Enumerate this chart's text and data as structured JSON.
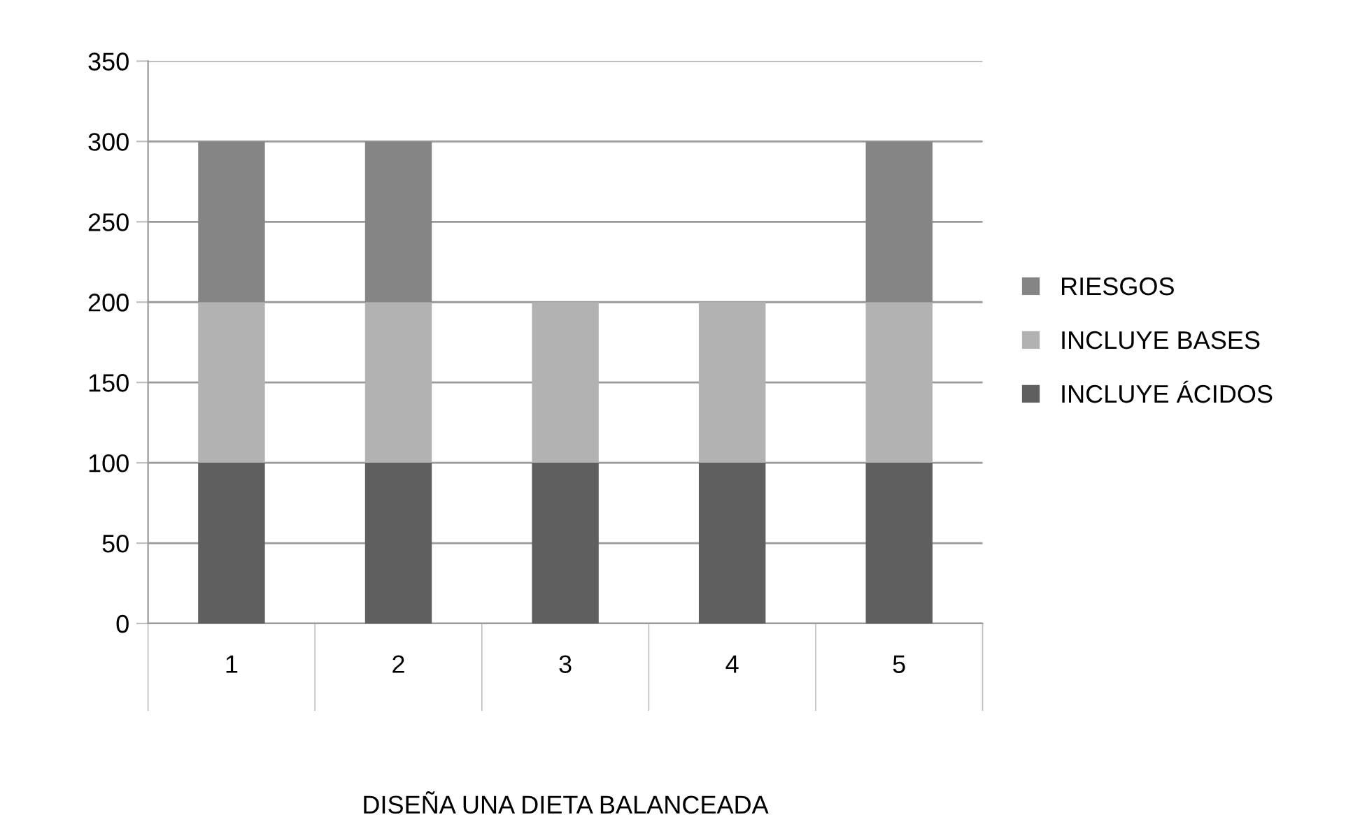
{
  "chart_data": {
    "type": "bar",
    "stacked": true,
    "xlabel": "DISEÑA UNA DIETA BALANCEADA",
    "categories": [
      "1",
      "2",
      "3",
      "4",
      "5"
    ],
    "series": [
      {
        "name": "INCLUYE ÁCIDOS",
        "color": "#5f5f5f",
        "values": [
          100,
          100,
          100,
          100,
          100
        ]
      },
      {
        "name": "INCLUYE BASES",
        "color": "#b2b2b2",
        "values": [
          100,
          100,
          100,
          100,
          100
        ]
      },
      {
        "name": "RIESGOS",
        "color": "#858585",
        "values": [
          100,
          100,
          null,
          null,
          100
        ]
      }
    ],
    "ylim": [
      0,
      350
    ],
    "yticks": [
      0,
      50,
      100,
      150,
      200,
      250,
      300,
      350
    ],
    "grid": "y",
    "legend": "right"
  }
}
